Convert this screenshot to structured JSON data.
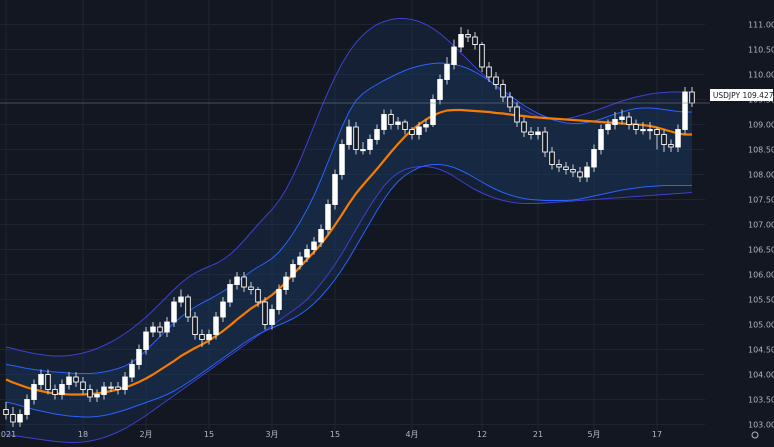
{
  "chart_data": {
    "type": "candlestick",
    "symbol": "USDJPY",
    "last_price": "109.427",
    "ylim": [
      103.0,
      111.2
    ],
    "y_ticks": [
      "111.000",
      "110.500",
      "110.000",
      "109.500",
      "109.000",
      "108.500",
      "108.000",
      "107.500",
      "107.000",
      "106.500",
      "106.000",
      "105.500",
      "105.000",
      "104.500",
      "104.000",
      "103.500",
      "103.000"
    ],
    "y_tick_values": [
      111.0,
      110.5,
      110.0,
      109.5,
      109.0,
      108.5,
      108.0,
      107.5,
      107.0,
      106.5,
      106.0,
      105.5,
      105.0,
      104.5,
      104.0,
      103.5,
      103.0
    ],
    "x_ticks": [
      "2021",
      "18",
      "2月",
      "15",
      "3月",
      "15",
      "4月",
      "12",
      "21",
      "5月",
      "17"
    ],
    "x_tick_index": [
      0,
      11,
      20,
      29,
      38,
      47,
      58,
      68,
      76,
      84,
      93
    ],
    "grid": true,
    "colors": {
      "background": "#131722",
      "grid": "#1e2433",
      "candle_up": "#ffffff",
      "candle_down": "#ffffff",
      "wick": "#c8cbd4",
      "ma_line": "#f57c00",
      "inner_band": "#2962ff",
      "outer_band": "#3f3fcf",
      "band_fill": "#1b3a63",
      "tick_text": "#b2b5be",
      "price_label_bg": "#ffffff",
      "price_label_text": "#131722"
    },
    "series": [
      {
        "name": "",
        "kind": "ohlc",
        "open": [
          103.3,
          103.2,
          103.05,
          103.2,
          103.5,
          103.8,
          104.0,
          103.7,
          103.6,
          103.8,
          103.95,
          103.85,
          103.7,
          103.55,
          103.6,
          103.75,
          103.75,
          103.7,
          103.95,
          104.2,
          104.5,
          104.85,
          104.95,
          104.85,
          105.05,
          105.45,
          105.55,
          105.15,
          104.8,
          104.7,
          104.8,
          105.15,
          105.45,
          105.8,
          105.95,
          105.75,
          105.7,
          105.45,
          105.0,
          105.3,
          105.7,
          105.95,
          106.2,
          106.35,
          106.5,
          106.65,
          106.9,
          107.4,
          108.0,
          108.6,
          108.95,
          108.5,
          108.5,
          108.7,
          108.9,
          109.2,
          109.0,
          109.05,
          108.9,
          108.8,
          108.95,
          109.0,
          109.5,
          109.9,
          110.2,
          110.55,
          110.8,
          110.75,
          110.6,
          110.15,
          109.95,
          109.8,
          109.55,
          109.35,
          109.05,
          108.85,
          108.8,
          108.85,
          108.45,
          108.2,
          108.15,
          108.1,
          108.05,
          107.95,
          108.15,
          108.5,
          108.9,
          109.0,
          109.1,
          109.15,
          109.0,
          108.9,
          108.9,
          108.9,
          108.8,
          108.6,
          108.55,
          108.9,
          109.65
        ],
        "close": [
          103.2,
          103.05,
          103.2,
          103.5,
          103.8,
          104.0,
          103.7,
          103.6,
          103.8,
          103.95,
          103.85,
          103.7,
          103.55,
          103.6,
          103.75,
          103.75,
          103.7,
          103.95,
          104.2,
          104.5,
          104.85,
          104.95,
          104.85,
          105.05,
          105.45,
          105.55,
          105.15,
          104.8,
          104.7,
          104.8,
          105.15,
          105.45,
          105.8,
          105.95,
          105.75,
          105.7,
          105.45,
          105.0,
          105.3,
          105.7,
          105.95,
          106.2,
          106.35,
          106.5,
          106.65,
          106.9,
          107.4,
          108.0,
          108.6,
          108.95,
          108.5,
          108.5,
          108.7,
          108.9,
          109.2,
          109.0,
          109.05,
          108.9,
          108.8,
          108.95,
          109.0,
          109.5,
          109.9,
          110.2,
          110.55,
          110.8,
          110.75,
          110.6,
          110.15,
          109.95,
          109.8,
          109.55,
          109.35,
          109.05,
          108.85,
          108.8,
          108.85,
          108.45,
          108.2,
          108.15,
          108.1,
          108.05,
          107.95,
          108.15,
          108.5,
          108.9,
          109.0,
          109.1,
          109.15,
          109.0,
          108.9,
          108.9,
          108.9,
          108.8,
          108.6,
          108.55,
          108.9,
          109.65,
          109.43
        ],
        "high": [
          103.45,
          103.35,
          103.3,
          103.6,
          103.9,
          104.1,
          104.1,
          103.8,
          103.9,
          104.05,
          104.05,
          103.95,
          103.8,
          103.7,
          103.85,
          103.85,
          103.85,
          104.05,
          104.3,
          104.6,
          104.95,
          105.05,
          105.05,
          105.15,
          105.55,
          105.7,
          105.6,
          105.25,
          104.9,
          104.9,
          105.25,
          105.55,
          105.9,
          106.05,
          106.05,
          105.85,
          105.75,
          105.55,
          105.4,
          105.8,
          106.05,
          106.3,
          106.45,
          106.6,
          106.75,
          107.0,
          107.5,
          108.1,
          108.7,
          109.1,
          109.05,
          108.65,
          108.8,
          109.0,
          109.3,
          109.3,
          109.15,
          109.1,
          108.95,
          109.05,
          109.1,
          109.6,
          110.0,
          110.35,
          110.7,
          110.95,
          110.9,
          110.85,
          110.65,
          110.25,
          110.05,
          109.9,
          109.65,
          109.45,
          109.15,
          108.95,
          108.95,
          108.95,
          108.55,
          108.3,
          108.25,
          108.2,
          108.15,
          108.25,
          108.6,
          109.0,
          109.1,
          109.25,
          109.3,
          109.25,
          109.1,
          109.05,
          109.05,
          108.95,
          108.9,
          108.7,
          109.0,
          109.75,
          109.75
        ],
        "low": [
          103.1,
          102.95,
          102.95,
          103.1,
          103.4,
          103.7,
          103.6,
          103.5,
          103.5,
          103.7,
          103.75,
          103.6,
          103.45,
          103.45,
          103.5,
          103.65,
          103.6,
          103.6,
          103.85,
          104.1,
          104.4,
          104.75,
          104.75,
          104.75,
          104.95,
          105.35,
          105.05,
          104.7,
          104.55,
          104.6,
          104.7,
          105.05,
          105.35,
          105.7,
          105.65,
          105.6,
          105.35,
          104.9,
          104.9,
          105.2,
          105.6,
          105.85,
          106.1,
          106.25,
          106.4,
          106.55,
          106.8,
          107.3,
          107.9,
          108.5,
          108.4,
          108.4,
          108.4,
          108.6,
          108.8,
          108.9,
          108.9,
          108.8,
          108.7,
          108.7,
          108.85,
          108.95,
          109.4,
          109.8,
          110.1,
          110.45,
          110.65,
          110.5,
          110.05,
          109.85,
          109.7,
          109.45,
          109.25,
          108.95,
          108.75,
          108.7,
          108.7,
          108.35,
          108.1,
          108.05,
          108.0,
          107.95,
          107.85,
          107.85,
          108.05,
          108.4,
          108.8,
          108.9,
          109.0,
          108.9,
          108.8,
          108.8,
          108.7,
          108.5,
          108.45,
          108.45,
          108.45,
          108.8,
          109.35
        ]
      },
      {
        "name": "",
        "kind": "line",
        "role": "ma",
        "values": [
          103.9,
          103.84,
          103.79,
          103.74,
          103.7,
          103.67,
          103.64,
          103.62,
          103.61,
          103.6,
          103.6,
          103.6,
          103.61,
          103.62,
          103.64,
          103.67,
          103.7,
          103.74,
          103.79,
          103.85,
          103.92,
          104.0,
          104.09,
          104.18,
          104.27,
          104.37,
          104.45,
          104.53,
          104.6,
          104.68,
          104.77,
          104.87,
          104.98,
          105.1,
          105.21,
          105.32,
          105.41,
          105.49,
          105.59,
          105.71,
          105.85,
          106.0,
          106.15,
          106.3,
          106.45,
          106.61,
          106.79,
          106.99,
          107.2,
          107.42,
          107.62,
          107.79,
          107.95,
          108.11,
          108.28,
          108.45,
          108.61,
          108.76,
          108.89,
          109.0,
          109.1,
          109.18,
          109.24,
          109.28,
          109.29,
          109.29,
          109.28,
          109.27,
          109.26,
          109.25,
          109.23,
          109.22,
          109.2,
          109.18,
          109.17,
          109.15,
          109.14,
          109.13,
          109.12,
          109.11,
          109.1,
          109.09,
          109.08,
          109.07,
          109.06,
          109.05,
          109.04,
          109.03,
          109.02,
          109.01,
          109.0,
          108.99,
          108.97,
          108.94,
          108.9,
          108.86,
          108.82,
          108.8,
          108.8
        ]
      },
      {
        "name": "",
        "kind": "line",
        "role": "inner-upper",
        "values": [
          104.2,
          104.18,
          104.15,
          104.12,
          104.1,
          104.08,
          104.06,
          104.05,
          104.04,
          104.03,
          104.02,
          104.02,
          104.02,
          104.03,
          104.05,
          104.08,
          104.12,
          104.17,
          104.25,
          104.35,
          104.48,
          104.62,
          104.76,
          104.9,
          105.03,
          105.15,
          105.26,
          105.35,
          105.43,
          105.5,
          105.58,
          105.66,
          105.75,
          105.85,
          105.96,
          106.06,
          106.15,
          106.23,
          106.32,
          106.45,
          106.62,
          106.82,
          107.05,
          107.3,
          107.58,
          107.9,
          108.25,
          108.6,
          108.95,
          109.25,
          109.48,
          109.62,
          109.72,
          109.8,
          109.88,
          109.95,
          110.02,
          110.08,
          110.13,
          110.17,
          110.2,
          110.22,
          110.23,
          110.22,
          110.2,
          110.17,
          110.12,
          110.05,
          109.97,
          109.88,
          109.78,
          109.68,
          109.58,
          109.48,
          109.38,
          109.3,
          109.22,
          109.16,
          109.1,
          109.06,
          109.03,
          109.02,
          109.02,
          109.04,
          109.07,
          109.11,
          109.16,
          109.21,
          109.25,
          109.29,
          109.32,
          109.33,
          109.33,
          109.32,
          109.3,
          109.28,
          109.26,
          109.25,
          109.25
        ]
      },
      {
        "name": "",
        "kind": "line",
        "role": "inner-lower",
        "values": [
          103.45,
          103.42,
          103.38,
          103.34,
          103.3,
          103.27,
          103.24,
          103.21,
          103.19,
          103.17,
          103.16,
          103.15,
          103.15,
          103.16,
          103.18,
          103.21,
          103.25,
          103.29,
          103.34,
          103.39,
          103.44,
          103.49,
          103.54,
          103.6,
          103.67,
          103.75,
          103.84,
          103.93,
          104.03,
          104.13,
          104.23,
          104.33,
          104.43,
          104.53,
          104.63,
          104.72,
          104.8,
          104.87,
          104.93,
          104.99,
          105.05,
          105.12,
          105.2,
          105.3,
          105.42,
          105.56,
          105.72,
          105.9,
          106.1,
          106.32,
          106.56,
          106.8,
          107.04,
          107.28,
          107.5,
          107.7,
          107.86,
          107.98,
          108.07,
          108.14,
          108.18,
          108.2,
          108.2,
          108.18,
          108.14,
          108.08,
          108.01,
          107.93,
          107.85,
          107.77,
          107.7,
          107.64,
          107.59,
          107.55,
          107.52,
          107.5,
          107.49,
          107.48,
          107.48,
          107.48,
          107.48,
          107.49,
          107.51,
          107.54,
          107.57,
          107.6,
          107.63,
          107.66,
          107.69,
          107.71,
          107.73,
          107.75,
          107.76,
          107.77,
          107.78,
          107.78,
          107.78,
          107.78,
          107.78
        ]
      },
      {
        "name": "",
        "kind": "line",
        "role": "outer-upper",
        "values": [
          104.55,
          104.52,
          104.48,
          104.45,
          104.42,
          104.4,
          104.38,
          104.37,
          104.37,
          104.38,
          104.4,
          104.43,
          104.47,
          104.52,
          104.58,
          104.65,
          104.73,
          104.82,
          104.92,
          105.03,
          105.15,
          105.28,
          105.42,
          105.56,
          105.7,
          105.83,
          105.94,
          106.03,
          106.1,
          106.16,
          106.22,
          106.3,
          106.4,
          106.53,
          106.68,
          106.84,
          107.0,
          107.15,
          107.3,
          107.48,
          107.7,
          107.97,
          108.28,
          108.62,
          108.97,
          109.32,
          109.65,
          109.95,
          110.22,
          110.45,
          110.64,
          110.79,
          110.91,
          111.0,
          111.06,
          111.1,
          111.12,
          111.12,
          111.1,
          111.06,
          111.0,
          110.92,
          110.82,
          110.7,
          110.57,
          110.43,
          110.29,
          110.15,
          110.02,
          109.89,
          109.76,
          109.63,
          109.51,
          109.4,
          109.3,
          109.22,
          109.16,
          109.12,
          109.1,
          109.1,
          109.11,
          109.14,
          109.18,
          109.22,
          109.27,
          109.32,
          109.37,
          109.42,
          109.47,
          109.51,
          109.55,
          109.58,
          109.61,
          109.63,
          109.64,
          109.65,
          109.65,
          109.65,
          109.65
        ]
      },
      {
        "name": "",
        "kind": "line",
        "role": "outer-lower",
        "values": [
          102.8,
          102.78,
          102.76,
          102.74,
          102.72,
          102.7,
          102.68,
          102.66,
          102.65,
          102.64,
          102.64,
          102.65,
          102.67,
          102.7,
          102.74,
          102.79,
          102.85,
          102.92,
          103.0,
          103.09,
          103.18,
          103.28,
          103.38,
          103.48,
          103.58,
          103.68,
          103.78,
          103.88,
          103.98,
          104.08,
          104.18,
          104.28,
          104.38,
          104.48,
          104.58,
          104.68,
          104.78,
          104.88,
          104.98,
          105.08,
          105.18,
          105.28,
          105.38,
          105.5,
          105.65,
          105.82,
          106.0,
          106.2,
          106.42,
          106.66,
          106.9,
          107.14,
          107.37,
          107.58,
          107.77,
          107.92,
          108.03,
          108.1,
          108.14,
          108.16,
          108.16,
          108.14,
          108.1,
          108.04,
          107.96,
          107.87,
          107.78,
          107.7,
          107.63,
          107.57,
          107.52,
          107.48,
          107.45,
          107.43,
          107.42,
          107.42,
          107.42,
          107.43,
          107.44,
          107.45,
          107.46,
          107.47,
          107.48,
          107.49,
          107.5,
          107.51,
          107.52,
          107.53,
          107.54,
          107.55,
          107.56,
          107.57,
          107.58,
          107.59,
          107.6,
          107.61,
          107.62,
          107.63,
          107.64
        ]
      }
    ]
  }
}
